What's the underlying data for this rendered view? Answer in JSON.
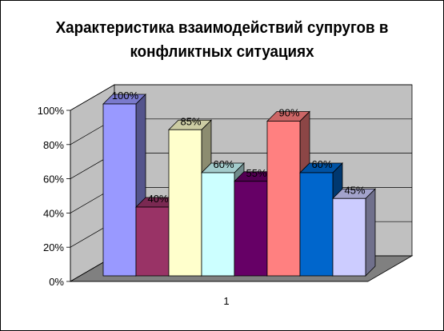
{
  "chart_data": {
    "type": "bar",
    "title": "Характеристика взаимодействий супругов в\nконфликтных ситуациях",
    "categories": [
      "1"
    ],
    "series": [
      {
        "values": [
          1.0
        ],
        "label": "100%",
        "color": "#9999ff"
      },
      {
        "values": [
          0.4
        ],
        "label": "40%",
        "color": "#993366"
      },
      {
        "values": [
          0.85
        ],
        "label": "85%",
        "color": "#ffffcc"
      },
      {
        "values": [
          0.6
        ],
        "label": "60%",
        "color": "#ccffff"
      },
      {
        "values": [
          0.55
        ],
        "label": "55%",
        "color": "#660066"
      },
      {
        "values": [
          0.9
        ],
        "label": "90%",
        "color": "#ff8080"
      },
      {
        "values": [
          0.6
        ],
        "label": "60%",
        "color": "#0066cc"
      },
      {
        "values": [
          0.45
        ],
        "label": "45%",
        "color": "#ccccff"
      }
    ],
    "yticks": [
      "0%",
      "20%",
      "40%",
      "60%",
      "80%",
      "100%"
    ],
    "ylim": [
      0,
      1
    ],
    "grid": true,
    "legend": "none",
    "walls_color": "#c0c0c0",
    "floor_color": "#808080"
  }
}
